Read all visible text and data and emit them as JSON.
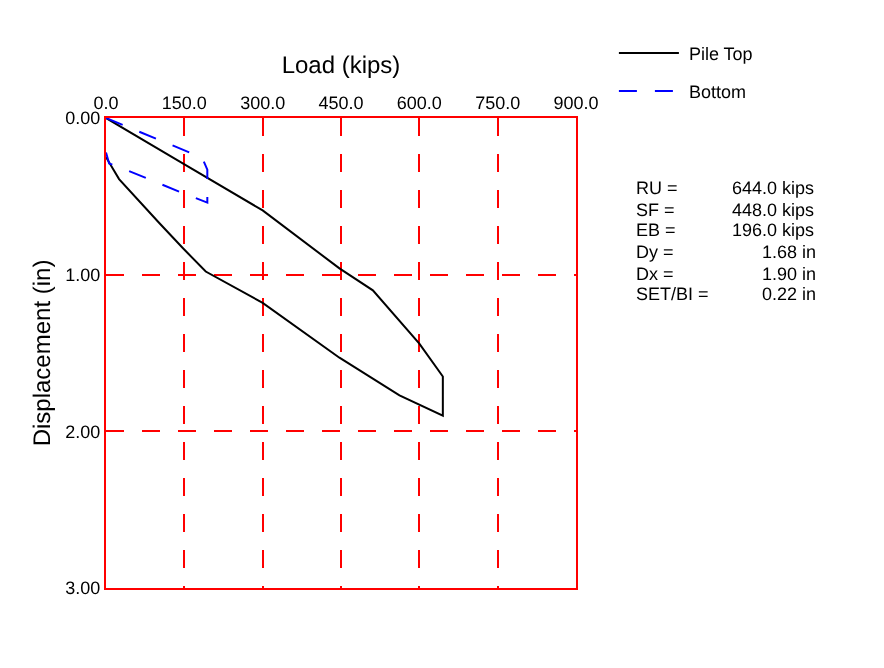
{
  "chart_data": {
    "type": "line",
    "xlabel": "Load (kips)",
    "ylabel": "Displacement (in)",
    "xlim": [
      0,
      900
    ],
    "xticks": [
      {
        "value": 0,
        "label": "0.0"
      },
      {
        "value": 150,
        "label": "150.0"
      },
      {
        "value": 300,
        "label": "300.0"
      },
      {
        "value": 450,
        "label": "450.0"
      },
      {
        "value": 600,
        "label": "600.0"
      },
      {
        "value": 750,
        "label": "750.0"
      },
      {
        "value": 900,
        "label": "900.0"
      }
    ],
    "ylim": [
      3,
      0
    ],
    "yticks": [
      {
        "value": 0,
        "label": "0.00"
      },
      {
        "value": 1,
        "label": "1.00"
      },
      {
        "value": 2,
        "label": "2.00"
      },
      {
        "value": 3,
        "label": "3.00"
      }
    ],
    "grid": true,
    "legend": "top right",
    "marker": "none",
    "series": [
      {
        "name": "Pile Top",
        "color": "#000000",
        "line_style": "solid",
        "x": [
          0,
          147,
          300,
          447,
          511,
          600,
          645,
          645,
          562,
          447,
          300,
          191,
          147,
          102,
          25,
          0
        ],
        "values": [
          0,
          0.29,
          0.59,
          0.96,
          1.1,
          1.44,
          1.65,
          1.9,
          1.77,
          1.53,
          1.18,
          0.98,
          0.83,
          0.67,
          0.39,
          0.25
        ]
      },
      {
        "name": "Bottom",
        "color": "#0000ff",
        "line_style": "dashed",
        "x": [
          0,
          160,
          185,
          194,
          194,
          140,
          38,
          6,
          0
        ],
        "values": [
          0,
          0.22,
          0.26,
          0.33,
          0.54,
          0.47,
          0.33,
          0.29,
          0.22
        ]
      }
    ],
    "annotations": [
      "RU =",
      "644.0 kips",
      "SF =",
      "448.0 kips",
      "EB =",
      "196.0 kips",
      "Dy =",
      "1.68 in",
      "Dx =",
      "1.90 in",
      "SET/BI =",
      "0.22 in"
    ]
  }
}
